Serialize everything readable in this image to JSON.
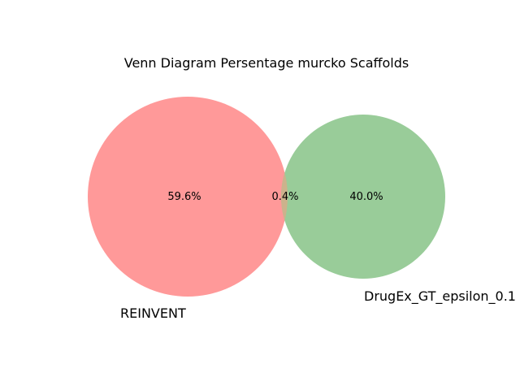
{
  "title": "Venn Diagram Persentage murcko Scaffolds",
  "sets": [
    {
      "name": "REINVENT",
      "color": "#ff9999"
    },
    {
      "name": "DrugEx_GT_epsilon_0.1",
      "color": "#99cc99"
    }
  ],
  "regions": {
    "left_only": "59.6%",
    "overlap": "0.4%",
    "right_only": "40.0%"
  },
  "overlap_color": "#ccb28c"
}
